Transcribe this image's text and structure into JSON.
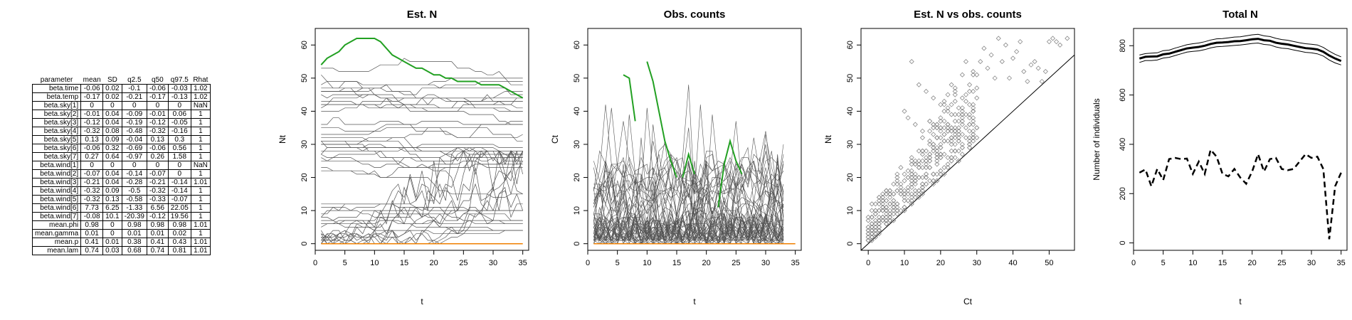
{
  "table": {
    "columns": [
      "parameter",
      "mean",
      "SD",
      "q2.5",
      "q50",
      "q97.5",
      "Rhat"
    ],
    "rows": [
      [
        "beta.time",
        "-0.06",
        "0.02",
        "-0.1",
        "-0.06",
        "-0.03",
        "1.02"
      ],
      [
        "beta.temp",
        "-0.17",
        "0.02",
        "-0.21",
        "-0.17",
        "-0.13",
        "1.02"
      ],
      [
        "beta.sky[1]",
        "0",
        "0",
        "0",
        "0",
        "0",
        "NaN"
      ],
      [
        "beta.sky[2]",
        "-0.01",
        "0.04",
        "-0.09",
        "-0.01",
        "0.06",
        "1"
      ],
      [
        "beta.sky[3]",
        "-0.12",
        "0.04",
        "-0.19",
        "-0.12",
        "-0.05",
        "1"
      ],
      [
        "beta.sky[4]",
        "-0.32",
        "0.08",
        "-0.48",
        "-0.32",
        "-0.16",
        "1"
      ],
      [
        "beta.sky[5]",
        "0.13",
        "0.09",
        "-0.04",
        "0.13",
        "0.3",
        "1"
      ],
      [
        "beta.sky[6]",
        "-0.06",
        "0.32",
        "-0.69",
        "-0.06",
        "0.56",
        "1"
      ],
      [
        "beta.sky[7]",
        "0.27",
        "0.64",
        "-0.97",
        "0.26",
        "1.58",
        "1"
      ],
      [
        "beta.wind[1]",
        "0",
        "0",
        "0",
        "0",
        "0",
        "NaN"
      ],
      [
        "beta.wind[2]",
        "-0.07",
        "0.04",
        "-0.14",
        "-0.07",
        "0",
        "1"
      ],
      [
        "beta.wind[3]",
        "-0.21",
        "0.04",
        "-0.28",
        "-0.21",
        "-0.14",
        "1.01"
      ],
      [
        "beta.wind[4]",
        "-0.32",
        "0.09",
        "-0.5",
        "-0.32",
        "-0.14",
        "1"
      ],
      [
        "beta.wind[5]",
        "-0.32",
        "0.13",
        "-0.58",
        "-0.33",
        "-0.07",
        "1"
      ],
      [
        "beta.wind[6]",
        "7.73",
        "6.25",
        "-1.33",
        "6.56",
        "22.05",
        "1"
      ],
      [
        "beta.wind[7]",
        "-0.08",
        "10.1",
        "-20.39",
        "-0.12",
        "19.56",
        "1"
      ],
      [
        "mean.phi",
        "0.98",
        "0",
        "0.98",
        "0.98",
        "0.98",
        "1.01"
      ],
      [
        "mean.gamma",
        "0.01",
        "0",
        "0.01",
        "0.01",
        "0.02",
        "1"
      ],
      [
        "mean.p",
        "0.41",
        "0.01",
        "0.38",
        "0.41",
        "0.43",
        "1.01"
      ],
      [
        "mean.lam",
        "0.74",
        "0.03",
        "0.68",
        "0.74",
        "0.81",
        "1.01"
      ]
    ]
  },
  "colors": {
    "green": "#22a022",
    "orange": "#f08000",
    "grey": "#555555",
    "scatter": "#8a8a8a"
  },
  "chart_data": [
    {
      "type": "line",
      "title": "Est. N",
      "xlabel": "t",
      "ylabel": "Nt",
      "xlim": [
        0,
        36
      ],
      "ylim": [
        -2,
        65
      ],
      "xticks": [
        0,
        5,
        10,
        15,
        20,
        25,
        30,
        35
      ],
      "yticks": [
        0,
        10,
        20,
        30,
        40,
        50,
        60
      ],
      "highlight_series": {
        "name": "",
        "color": "#22a022",
        "x": [
          1,
          2,
          3,
          4,
          5,
          6,
          7,
          8,
          9,
          10,
          11,
          12,
          13,
          14,
          15,
          16,
          17,
          18,
          19,
          20,
          21,
          22,
          23,
          24,
          25,
          26,
          27,
          28,
          29,
          30,
          31,
          32,
          33,
          34,
          35
        ],
        "y": [
          54,
          56,
          57,
          58,
          60,
          61,
          62,
          62,
          62,
          62,
          61,
          59,
          57,
          56,
          55,
          54,
          53,
          53,
          52,
          51,
          51,
          50,
          50,
          49,
          49,
          49,
          49,
          48,
          48,
          48,
          48,
          47,
          46,
          45,
          44
        ]
      },
      "series_notes": "many grey individual trajectories between 0 and 56; orange line at 0"
    },
    {
      "type": "line",
      "title": "Obs. counts",
      "xlabel": "t",
      "ylabel": "Ct",
      "xlim": [
        0,
        36
      ],
      "ylim": [
        -2,
        65
      ],
      "xticks": [
        0,
        5,
        10,
        15,
        20,
        25,
        30,
        35
      ],
      "yticks": [
        0,
        10,
        20,
        30,
        40,
        50,
        60
      ],
      "highlight_segments": [
        {
          "x": [
            6,
            7,
            8
          ],
          "y": [
            51,
            50,
            37
          ]
        },
        {
          "x": [
            10,
            11,
            12,
            13,
            14,
            15
          ],
          "y": [
            55,
            49,
            40,
            31,
            25,
            20
          ]
        },
        {
          "x": [
            16,
            17,
            18
          ],
          "y": [
            20,
            27,
            21
          ]
        },
        {
          "x": [
            22,
            23,
            24,
            25,
            26
          ],
          "y": [
            11,
            24,
            31,
            25,
            21
          ]
        }
      ],
      "series_notes": "many grey individual count series between 0 and 45"
    },
    {
      "type": "scatter",
      "title": "Est. N vs obs. counts",
      "xlabel": "Ct",
      "ylabel": "Nt",
      "xlim": [
        -2,
        57
      ],
      "ylim": [
        -2,
        65
      ],
      "xticks": [
        0,
        10,
        20,
        30,
        40,
        50
      ],
      "yticks": [
        0,
        10,
        20,
        30,
        40,
        50,
        60
      ],
      "reference_line": "y = x",
      "points_x": [
        36,
        38,
        40,
        41,
        42,
        43,
        45,
        47,
        48,
        50,
        51,
        52,
        53,
        55,
        32,
        34,
        37,
        39,
        44,
        46,
        49,
        31,
        33,
        35,
        30,
        12,
        14,
        16,
        18,
        20,
        22,
        24,
        26,
        28,
        10,
        11,
        13,
        15,
        17,
        19,
        21,
        23,
        25,
        27,
        29
      ],
      "points_y": [
        62,
        60,
        56,
        58,
        61,
        52,
        54,
        53,
        49,
        61,
        62,
        61,
        60,
        62,
        59,
        57,
        55,
        50,
        49,
        55,
        52,
        55,
        53,
        50,
        47,
        55,
        48,
        46,
        44,
        42,
        45,
        43,
        40,
        42,
        40,
        38,
        36,
        34,
        37,
        35,
        33,
        39,
        37,
        35,
        33
      ]
    },
    {
      "type": "line",
      "title": "Total N",
      "xlabel": "t",
      "ylabel": "Number of individuals",
      "xlim": [
        0,
        36
      ],
      "ylim": [
        -30,
        870
      ],
      "xticks": [
        0,
        5,
        10,
        15,
        20,
        25,
        30,
        35
      ],
      "yticks": [
        0,
        200,
        400,
        600,
        800
      ],
      "x": [
        1,
        2,
        3,
        4,
        5,
        6,
        7,
        8,
        9,
        10,
        11,
        12,
        13,
        14,
        15,
        16,
        17,
        18,
        19,
        20,
        21,
        22,
        23,
        24,
        25,
        26,
        27,
        28,
        29,
        30,
        31,
        32,
        33,
        34,
        35
      ],
      "series": [
        {
          "name": "",
          "style": "solid-thick",
          "values": [
            748,
            755,
            756,
            757,
            765,
            768,
            775,
            782,
            789,
            792,
            795,
            800,
            807,
            812,
            813,
            815,
            818,
            819,
            822,
            826,
            828,
            822,
            820,
            812,
            808,
            805,
            800,
            795,
            790,
            788,
            785,
            775,
            760,
            748,
            738
          ]
        },
        {
          "name": "",
          "style": "solid-thin-upper",
          "values": [
            762,
            768,
            770,
            771,
            780,
            782,
            790,
            797,
            804,
            808,
            811,
            816,
            823,
            828,
            829,
            832,
            835,
            836,
            840,
            844,
            846,
            840,
            837,
            830,
            825,
            822,
            817,
            812,
            808,
            806,
            803,
            793,
            778,
            765,
            755
          ]
        },
        {
          "name": "",
          "style": "solid-thin-lower",
          "values": [
            732,
            740,
            740,
            742,
            750,
            753,
            760,
            767,
            774,
            777,
            779,
            784,
            791,
            796,
            797,
            799,
            801,
            803,
            806,
            809,
            811,
            805,
            803,
            795,
            790,
            788,
            783,
            778,
            773,
            771,
            767,
            758,
            742,
            730,
            722
          ]
        },
        {
          "name": "",
          "style": "dashed",
          "values": [
            285,
            298,
            230,
            300,
            255,
            340,
            345,
            340,
            342,
            280,
            330,
            280,
            378,
            350,
            280,
            270,
            300,
            265,
            240,
            290,
            360,
            290,
            340,
            345,
            300,
            295,
            300,
            330,
            360,
            345,
            350,
            300,
            15,
            230,
            285
          ]
        }
      ]
    }
  ]
}
